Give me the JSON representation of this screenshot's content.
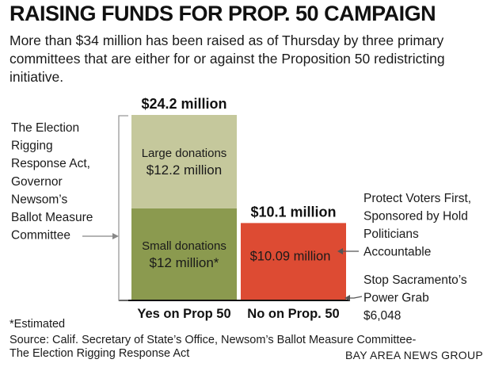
{
  "title": "RAISING FUNDS FOR PROP. 50 CAMPAIGN",
  "subtitle": "More than $34 million has been raised as of Thursday by three primary committees that are either for or against the Proposition 50 redistricting initiative.",
  "colors": {
    "large_donations": "#c5c89c",
    "small_donations": "#8b9a4f",
    "no_committee": "#dd4b33",
    "stop_sacramento": "#f39c2b"
  },
  "chart_data": {
    "type": "bar",
    "stacked": true,
    "categories": [
      "Yes on Prop 50",
      "No on Prop. 50"
    ],
    "totals": [
      "$24.2 million",
      "$10.1 million"
    ],
    "ylim": [
      0,
      24.2
    ],
    "grid": false,
    "segments": [
      {
        "category": "Yes on Prop 50",
        "name": "Small donations",
        "value": 12.0,
        "label": "$12 million*",
        "color_key": "small_donations"
      },
      {
        "category": "Yes on Prop 50",
        "name": "Large donations",
        "value": 12.2,
        "label": "$12.2 million",
        "color_key": "large_donations"
      },
      {
        "category": "No on Prop. 50",
        "name": "",
        "value": 0.006048,
        "label": "",
        "color_key": "stop_sacramento"
      },
      {
        "category": "No on Prop. 50",
        "name": "",
        "value": 10.09,
        "label": "$10.09 million",
        "color_key": "no_committee"
      }
    ],
    "annotations": {
      "yes_committee": [
        "The Election",
        "Rigging",
        "Response Act,",
        "Governor",
        "Newsom’s",
        "Ballot Measure",
        "Committee"
      ],
      "no_committee": [
        "Protect Voters First,",
        "Sponsored by Hold",
        "Politicians",
        "Accountable"
      ],
      "stop_committee": [
        "Stop Sacramento’s",
        "Power Grab",
        "$6,048"
      ]
    }
  },
  "footnote": "*Estimated",
  "source_line1": "Source: Calif. Secretary of State’s Office, Newsom’s Ballot Measure Committee-",
  "source_line2": "The Election Rigging Response Act",
  "credit": "BAY AREA NEWS GROUP"
}
